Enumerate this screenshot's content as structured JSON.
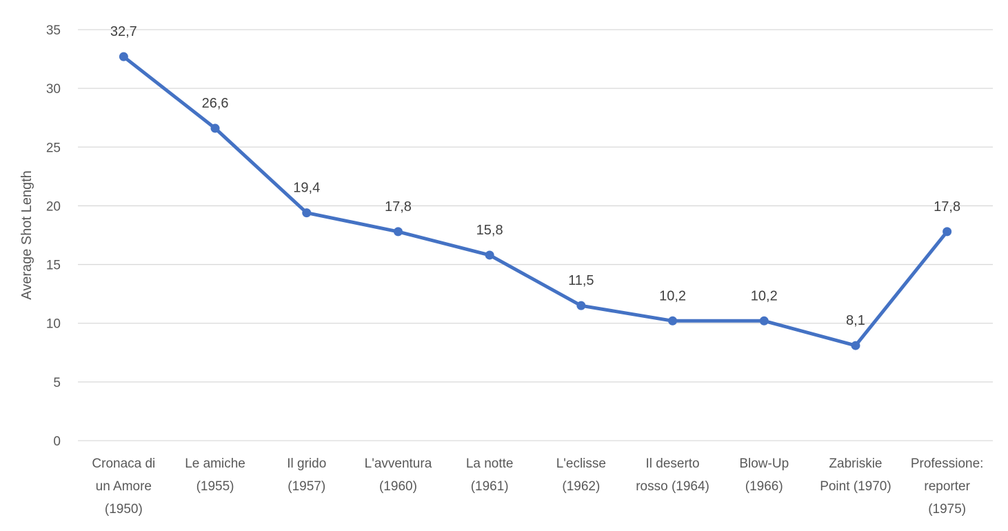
{
  "chart_data": {
    "type": "line",
    "title": "",
    "xlabel": "",
    "ylabel": "Average Shot Length",
    "ylim": [
      0,
      35
    ],
    "yticks": [
      0,
      5,
      10,
      15,
      20,
      25,
      30,
      35
    ],
    "grid": true,
    "legend": "none",
    "categories": [
      "Cronaca di un Amore (1950)",
      "Le amiche (1955)",
      "Il grido (1957)",
      "L'avventura (1960)",
      "La notte (1961)",
      "L'eclisse (1962)",
      "Il deserto rosso (1964)",
      "Blow-Up (1966)",
      "Zabriskie Point (1970)",
      "Professione: reporter (1975)"
    ],
    "category_lines": [
      [
        "Cronaca di",
        "un Amore",
        "(1950)"
      ],
      [
        "Le amiche",
        "(1955)"
      ],
      [
        "Il grido",
        "(1957)"
      ],
      [
        "L'avventura",
        "(1960)"
      ],
      [
        "La notte",
        "(1961)"
      ],
      [
        "L'eclisse",
        "(1962)"
      ],
      [
        "Il deserto",
        "rosso (1964)"
      ],
      [
        "Blow-Up",
        "(1966)"
      ],
      [
        "Zabriskie",
        "Point (1970)"
      ],
      [
        "Professione:",
        "reporter",
        "(1975)"
      ]
    ],
    "series": [
      {
        "values": [
          32.7,
          26.6,
          19.4,
          17.8,
          15.8,
          11.5,
          10.2,
          10.2,
          8.1,
          17.8
        ],
        "labels": [
          "32,7",
          "26,6",
          "19,4",
          "17,8",
          "15,8",
          "11,5",
          "10,2",
          "10,2",
          "8,1",
          "17,8"
        ],
        "color": "#4472c4"
      }
    ],
    "gridline_color": "#d9d9d9"
  }
}
